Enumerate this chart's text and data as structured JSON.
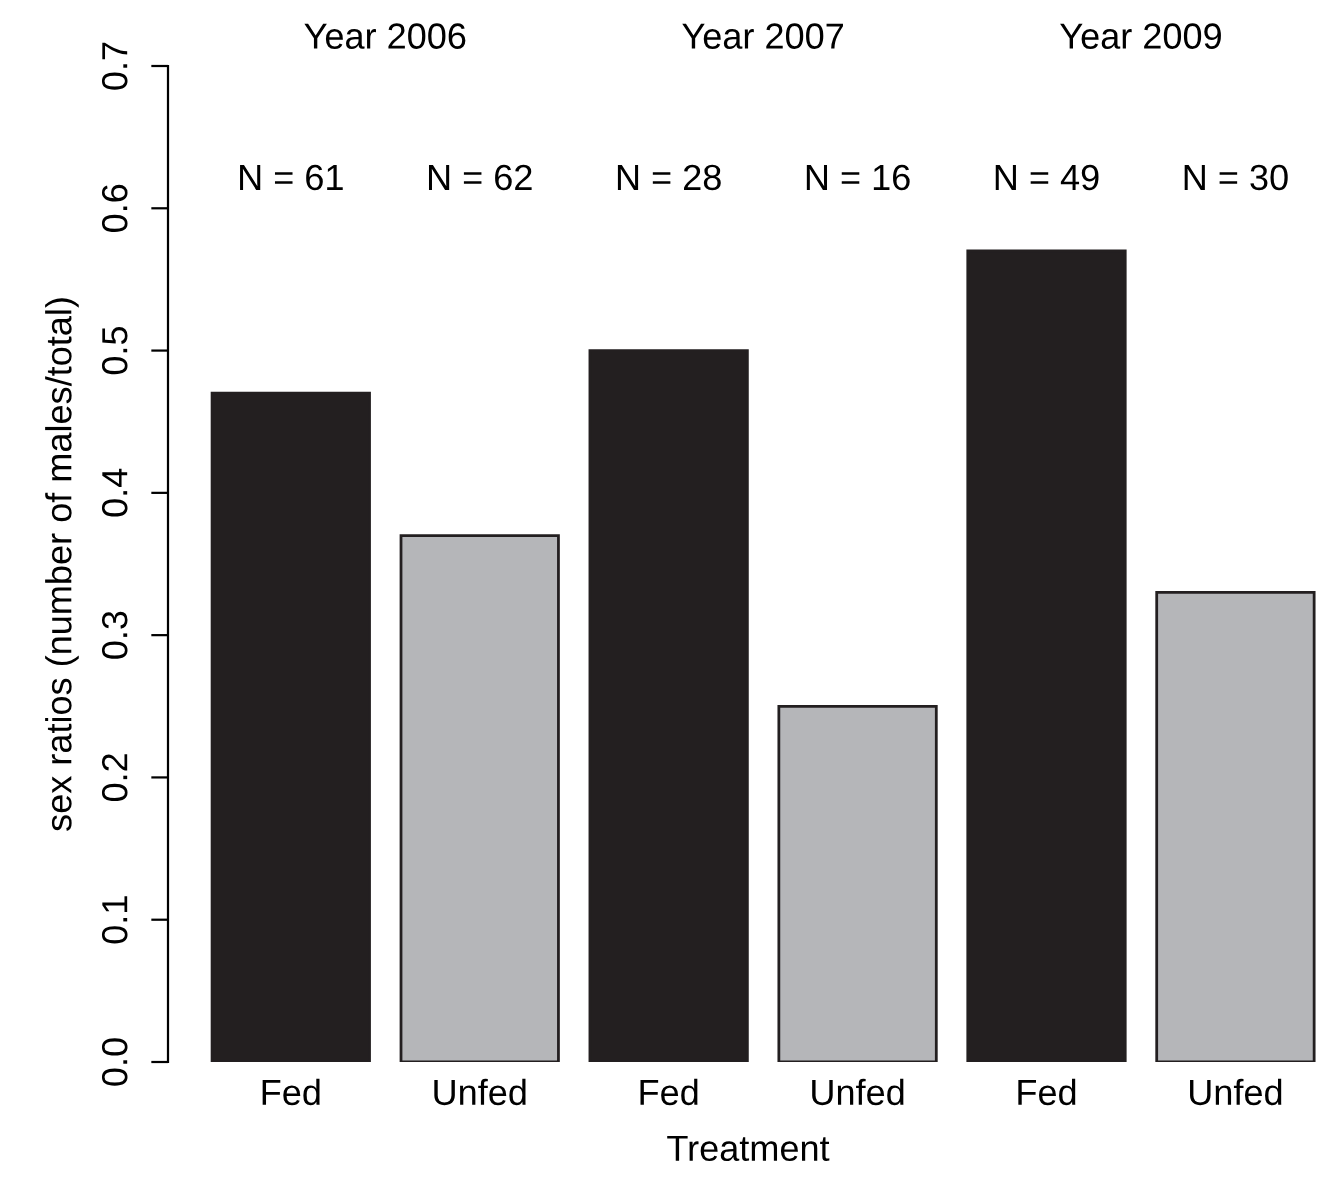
{
  "chart_data": {
    "type": "bar",
    "xlabel": "Treatment",
    "ylabel": "sex ratios (number of males/total)",
    "categories": [
      "Fed",
      "Unfed",
      "Fed",
      "Unfed",
      "Fed",
      "Unfed"
    ],
    "values": [
      0.47,
      0.37,
      0.5,
      0.25,
      0.57,
      0.33
    ],
    "colors": [
      "#231f20",
      "#b5b6b9",
      "#231f20",
      "#b5b6b9",
      "#231f20",
      "#b5b6b9"
    ],
    "ylim": [
      0,
      0.7
    ],
    "yticks": [
      {
        "value": 0,
        "label": "0.0"
      },
      0.1,
      0.2,
      0.3,
      0.4,
      0.5,
      0.6,
      0.7
    ],
    "grid": false,
    "legend": false,
    "annotations": [
      "Year 2006",
      "Year 2007",
      "Year 2009",
      "N = 61",
      "N = 62",
      "N = 28",
      "N = 16",
      "N = 49",
      "N = 30"
    ]
  }
}
